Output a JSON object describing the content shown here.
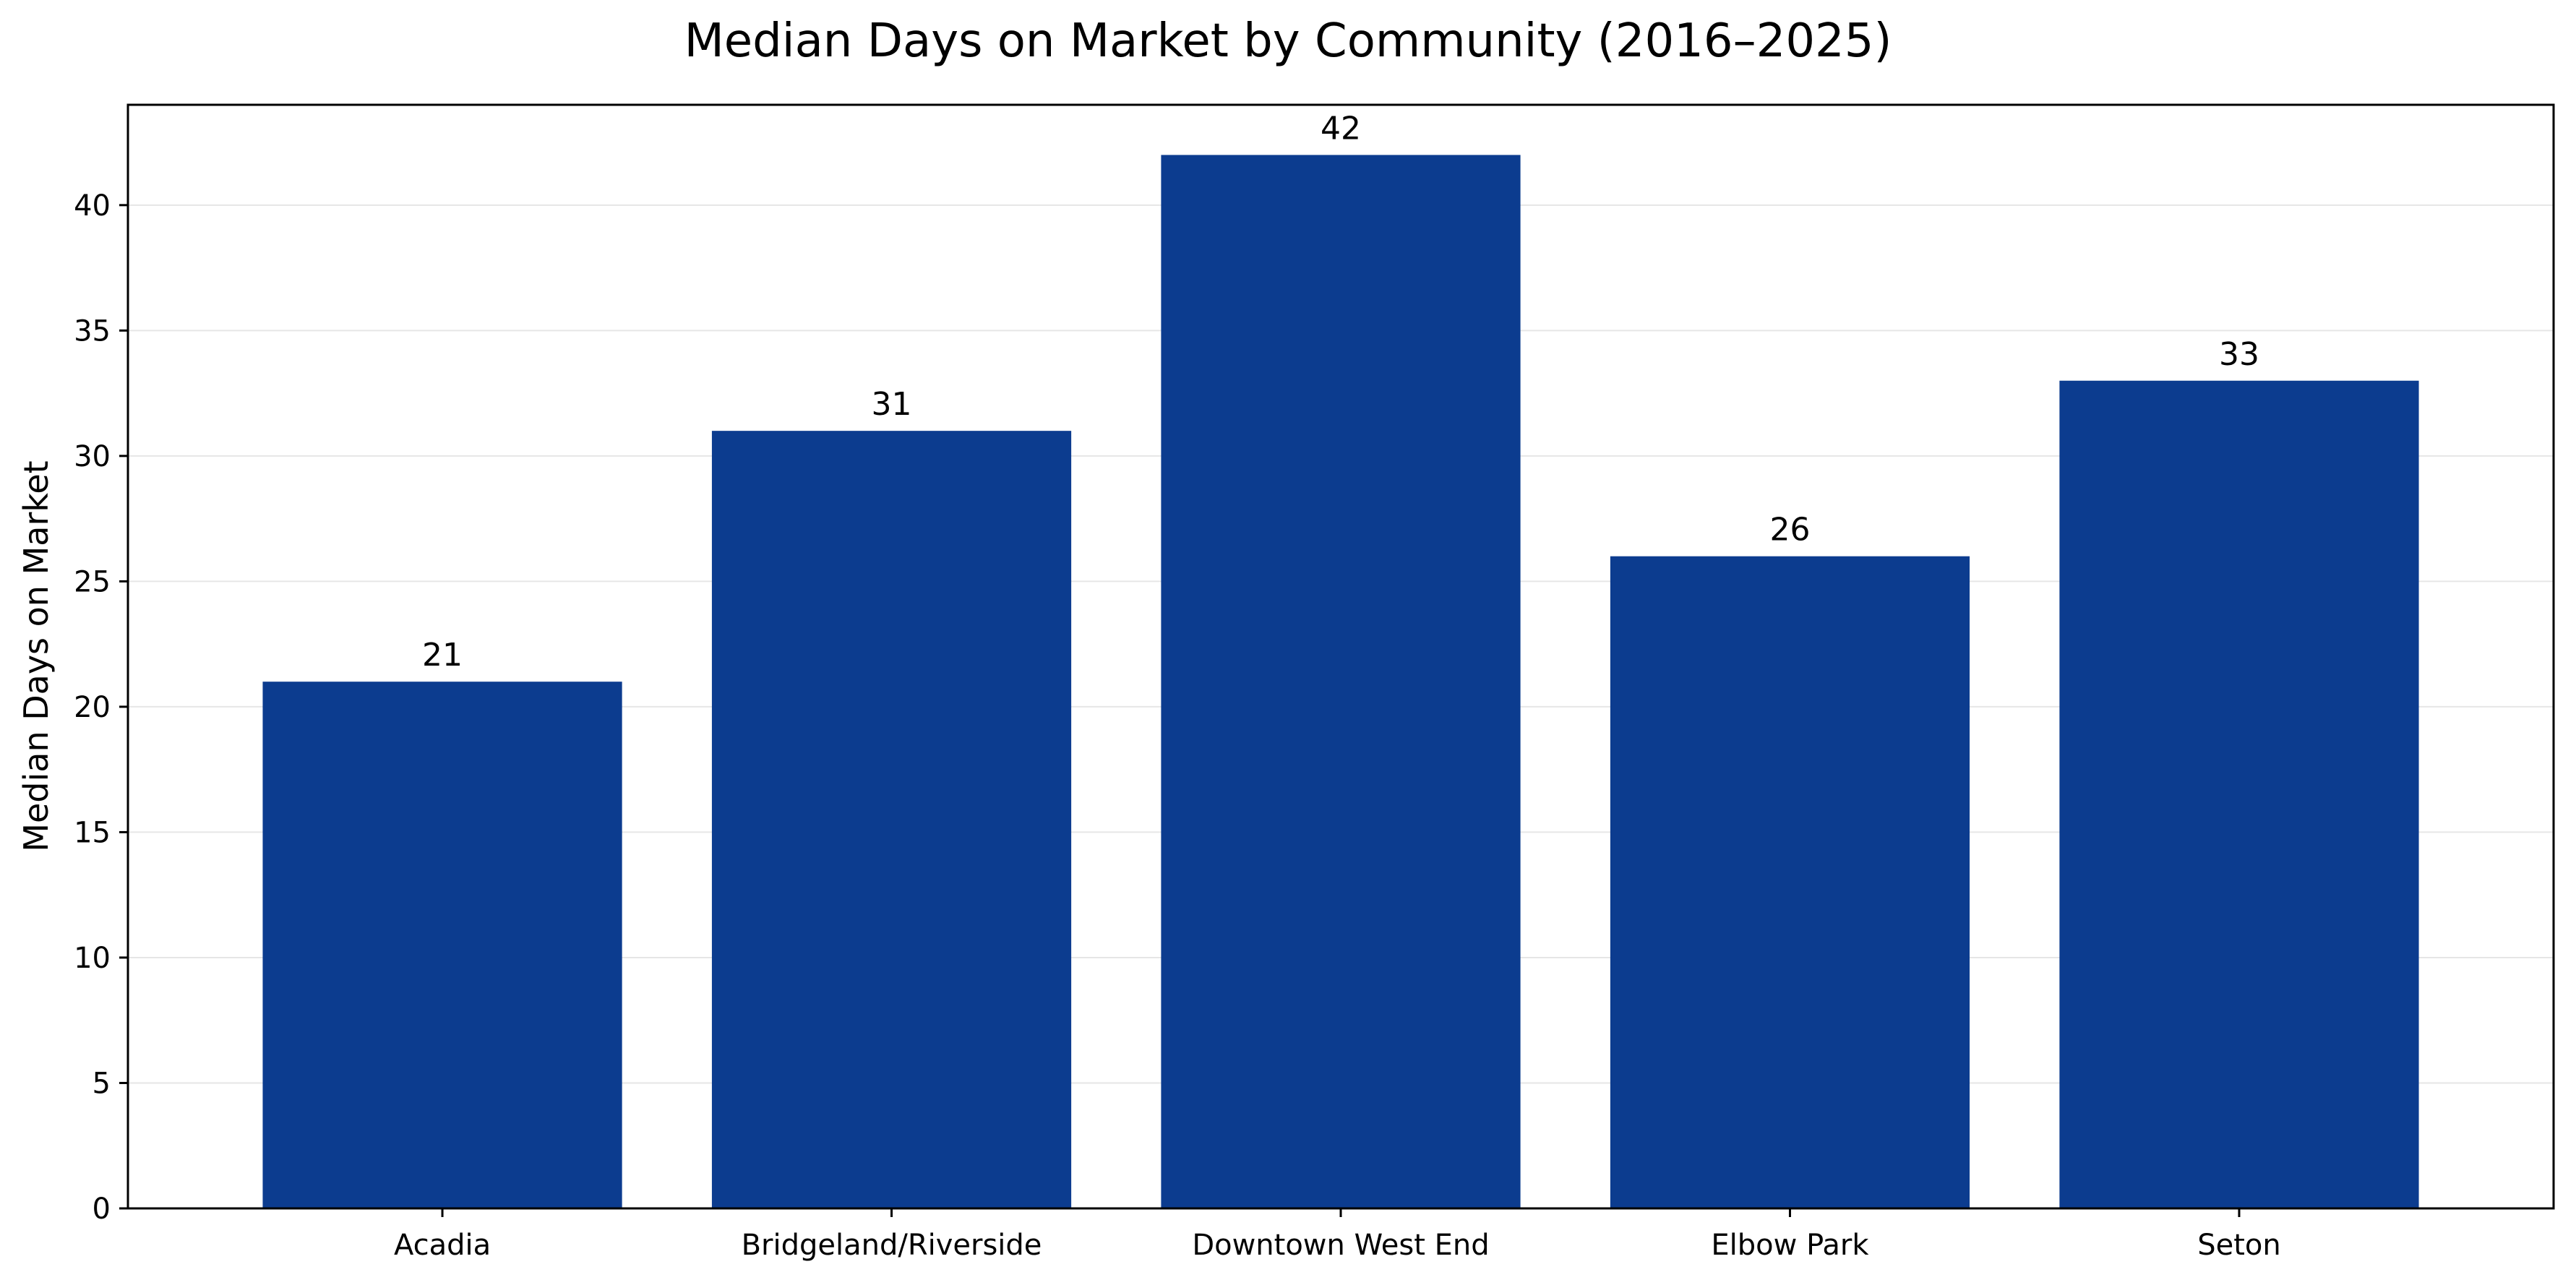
{
  "colors": {
    "bar": "#0c3c8f",
    "grid": "#e6e6e6",
    "axis": "#000000",
    "background": "#ffffff"
  },
  "chart_data": {
    "type": "bar",
    "title": "Median Days on Market by Community (2016–2025)",
    "xlabel": "",
    "ylabel": "Median Days on Market",
    "categories": [
      "Acadia",
      "Bridgeland/Riverside",
      "Downtown West End",
      "Elbow Park",
      "Seton"
    ],
    "values": [
      21,
      31,
      42,
      26,
      33
    ],
    "data_labels": [
      "21",
      "31",
      "42",
      "26",
      "33"
    ],
    "ylim": [
      0,
      44
    ],
    "yticks": [
      0,
      5,
      10,
      15,
      20,
      25,
      30,
      35,
      40
    ],
    "grid": true,
    "grid_axis": "y",
    "legend": false
  }
}
